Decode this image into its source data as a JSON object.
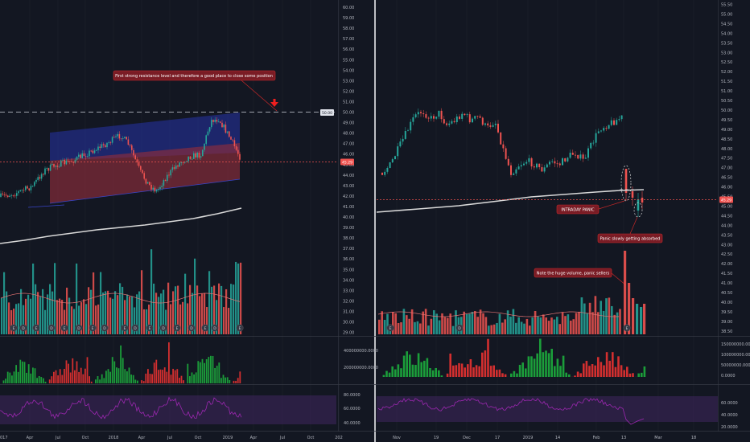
{
  "colors": {
    "background": "#131722",
    "grid": "#1e222d",
    "up": "#26a69a",
    "down": "#ef5350",
    "ma": "#d8d8d8",
    "channel_fill_upper": "#2733a8",
    "channel_fill_lower": "#8e2c3c",
    "resistance_line": "#cfd2da",
    "support_line": "#ef5350",
    "rsi_band": "#5a2d82",
    "rsi_line": "#9c27b0",
    "oscillator_green": "#1b9e3a",
    "oscillator_red": "#d32f2f",
    "annotation_bg": "#7a1c25",
    "annotation_border": "#c62828",
    "arrow": "#ef1f1f",
    "earnings_marker": "#363a45",
    "volume_ma": "#e57373"
  },
  "chart_data": [
    {
      "type": "candlestick",
      "panel": "left-price",
      "x": [
        "Apr",
        "Jul",
        "Oct",
        "2018",
        "Apr",
        "Jul",
        "Oct",
        "2019",
        "Apr",
        "Jul",
        "Oct",
        "202"
      ],
      "x_first_partial": "017",
      "ylim": [
        30.0,
        60.0
      ],
      "y_ticks": [
        "60.00",
        "59.00",
        "58.00",
        "57.00",
        "56.00",
        "55.00",
        "54.00",
        "53.00",
        "52.00",
        "51.00",
        "50.00",
        "49.00",
        "48.00",
        "47.00",
        "46.00",
        "45.00",
        "44.00",
        "43.00",
        "42.00",
        "41.00",
        "40.00",
        "39.00",
        "38.00",
        "37.00",
        "36.00",
        "35.00",
        "34.00",
        "33.00",
        "32.00",
        "31.00",
        "30.00",
        "29.00"
      ],
      "last_price": "45.29",
      "resistance_price": "50.00",
      "annotations": [
        "First strong resistance level and therefore a good place to close some position"
      ],
      "earnings_markers": [
        "E",
        "D",
        "E",
        "D",
        "E",
        "D",
        "E",
        "D",
        "E",
        "D",
        "E",
        "D",
        "E",
        "D",
        "E",
        "D",
        "E"
      ]
    },
    {
      "type": "candlestick",
      "panel": "right-price",
      "x": [
        "Nov",
        "19",
        "Dec",
        "17",
        "2019",
        "14",
        "Feb",
        "13",
        "Mar",
        "18"
      ],
      "ylim": [
        38.5,
        55.5
      ],
      "y_ticks": [
        "55.50",
        "55.00",
        "54.50",
        "54.00",
        "53.50",
        "53.00",
        "52.50",
        "52.00",
        "51.50",
        "51.00",
        "50.50",
        "50.00",
        "49.50",
        "49.00",
        "48.50",
        "48.00",
        "47.50",
        "47.00",
        "46.50",
        "46.00",
        "45.50",
        "45.00",
        "44.50",
        "44.00",
        "43.50",
        "43.00",
        "42.50",
        "42.00",
        "41.50",
        "41.00",
        "40.50",
        "40.00",
        "39.50",
        "39.00",
        "38.50"
      ],
      "last_price": "45.29",
      "annotations": [
        "INTRADAY PANIC",
        "Panic slowly getting absorbed",
        "Note the huge volume, panic sellers"
      ],
      "earnings_markers": [
        "E",
        "D",
        "E"
      ]
    },
    {
      "type": "bar",
      "panel": "left-oscillator",
      "y_ticks": [
        "400000000.0000",
        "200000000.0000"
      ]
    },
    {
      "type": "bar",
      "panel": "right-oscillator",
      "y_ticks": [
        "150000000.0000",
        "100000000.0000",
        "50000000.0000",
        "0.0000"
      ]
    },
    {
      "type": "line",
      "panel": "left-rsi",
      "y_ticks": [
        "80.0000",
        "60.0000",
        "40.0000"
      ]
    },
    {
      "type": "line",
      "panel": "right-rsi",
      "y_ticks": [
        "60.0000",
        "40.0000",
        "20.0000"
      ]
    }
  ]
}
